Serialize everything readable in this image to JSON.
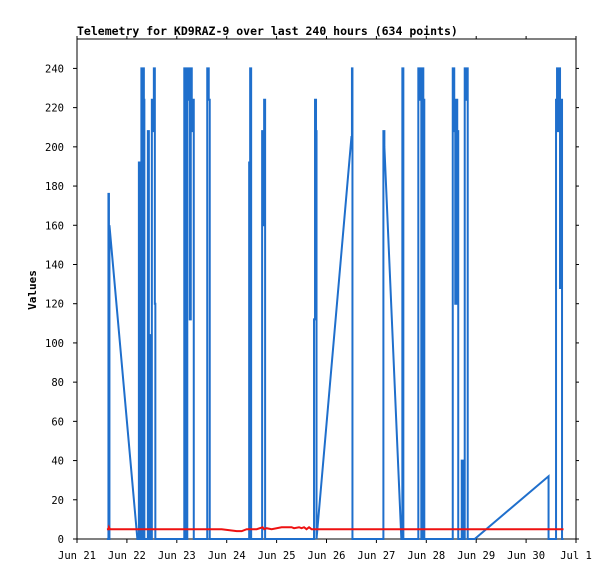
{
  "chart_data": {
    "type": "line",
    "title": "Telemetry for KD9RAZ-9 over last 240 hours (634 points)",
    "ylabel": "Values",
    "xlabel": "",
    "ylim": [
      0,
      255
    ],
    "xlim": [
      0,
      10
    ],
    "grid": false,
    "y_ticks": [
      0,
      20,
      40,
      60,
      80,
      100,
      120,
      140,
      160,
      180,
      200,
      220,
      240
    ],
    "x_ticks": [
      {
        "x": 0,
        "label": "Jun 21"
      },
      {
        "x": 1,
        "label": "Jun 22"
      },
      {
        "x": 2,
        "label": "Jun 23"
      },
      {
        "x": 3,
        "label": "Jun 24"
      },
      {
        "x": 4,
        "label": "Jun 25"
      },
      {
        "x": 5,
        "label": "Jun 26"
      },
      {
        "x": 6,
        "label": "Jun 27"
      },
      {
        "x": 7,
        "label": "Jun 28"
      },
      {
        "x": 8,
        "label": "Jun 29"
      },
      {
        "x": 9,
        "label": "Jun 30"
      },
      {
        "x": 10,
        "label": "Jul 1"
      }
    ],
    "series": [
      {
        "color": "#1f6fcc",
        "points": [
          [
            0.6,
            0
          ],
          [
            0.63,
            0
          ],
          [
            0.63,
            176
          ],
          [
            0.64,
            176
          ],
          [
            0.64,
            0
          ],
          [
            0.65,
            0
          ],
          [
            0.65,
            160
          ],
          [
            1.21,
            0
          ],
          [
            1.24,
            0
          ],
          [
            1.24,
            192
          ],
          [
            1.25,
            192
          ],
          [
            1.25,
            0
          ],
          [
            1.29,
            0
          ],
          [
            1.29,
            240
          ],
          [
            1.31,
            240
          ],
          [
            1.31,
            0
          ],
          [
            1.32,
            0
          ],
          [
            1.32,
            240
          ],
          [
            1.34,
            240
          ],
          [
            1.34,
            224
          ],
          [
            1.35,
            224
          ],
          [
            1.35,
            0
          ],
          [
            1.42,
            0
          ],
          [
            1.42,
            208
          ],
          [
            1.44,
            208
          ],
          [
            1.44,
            104
          ],
          [
            1.46,
            104
          ],
          [
            1.46,
            0
          ],
          [
            1.5,
            0
          ],
          [
            1.5,
            224
          ],
          [
            1.52,
            224
          ],
          [
            1.52,
            208
          ],
          [
            1.54,
            208
          ],
          [
            1.54,
            240
          ],
          [
            1.56,
            240
          ],
          [
            1.56,
            120
          ],
          [
            1.57,
            120
          ],
          [
            1.57,
            0
          ],
          [
            2.15,
            0
          ],
          [
            2.15,
            240
          ],
          [
            2.17,
            240
          ],
          [
            2.17,
            120
          ],
          [
            2.19,
            120
          ],
          [
            2.19,
            0
          ],
          [
            2.21,
            0
          ],
          [
            2.21,
            240
          ],
          [
            2.24,
            240
          ],
          [
            2.24,
            224
          ],
          [
            2.26,
            224
          ],
          [
            2.26,
            112
          ],
          [
            2.28,
            112
          ],
          [
            2.28,
            240
          ],
          [
            2.3,
            240
          ],
          [
            2.3,
            208
          ],
          [
            2.32,
            208
          ],
          [
            2.32,
            224
          ],
          [
            2.34,
            224
          ],
          [
            2.34,
            0
          ],
          [
            2.61,
            0
          ],
          [
            2.61,
            240
          ],
          [
            2.64,
            240
          ],
          [
            2.64,
            224
          ],
          [
            2.66,
            224
          ],
          [
            2.66,
            0
          ],
          [
            3.45,
            0
          ],
          [
            3.45,
            192
          ],
          [
            3.47,
            192
          ],
          [
            3.47,
            240
          ],
          [
            3.49,
            240
          ],
          [
            3.49,
            0
          ],
          [
            3.71,
            0
          ],
          [
            3.71,
            208
          ],
          [
            3.73,
            208
          ],
          [
            3.73,
            160
          ],
          [
            3.75,
            160
          ],
          [
            3.75,
            224
          ],
          [
            3.77,
            224
          ],
          [
            3.77,
            0
          ],
          [
            4.75,
            0
          ],
          [
            4.75,
            112
          ],
          [
            4.77,
            112
          ],
          [
            4.77,
            224
          ],
          [
            4.79,
            224
          ],
          [
            4.79,
            208
          ],
          [
            4.8,
            208
          ],
          [
            4.8,
            0
          ],
          [
            5.5,
            205
          ],
          [
            5.51,
            205
          ],
          [
            5.51,
            240
          ],
          [
            5.52,
            240
          ],
          [
            5.52,
            0
          ],
          [
            6.14,
            0
          ],
          [
            6.14,
            208
          ],
          [
            6.16,
            208
          ],
          [
            6.16,
            200
          ],
          [
            6.5,
            0
          ],
          [
            6.52,
            0
          ],
          [
            6.52,
            240
          ],
          [
            6.54,
            240
          ],
          [
            6.54,
            0
          ],
          [
            6.84,
            0
          ],
          [
            6.84,
            240
          ],
          [
            6.86,
            240
          ],
          [
            6.86,
            224
          ],
          [
            6.88,
            224
          ],
          [
            6.88,
            240
          ],
          [
            6.9,
            240
          ],
          [
            6.9,
            0
          ],
          [
            6.92,
            0
          ],
          [
            6.92,
            240
          ],
          [
            6.94,
            240
          ],
          [
            6.94,
            224
          ],
          [
            6.96,
            224
          ],
          [
            6.96,
            0
          ],
          [
            7.53,
            0
          ],
          [
            7.53,
            240
          ],
          [
            7.56,
            240
          ],
          [
            7.56,
            208
          ],
          [
            7.58,
            208
          ],
          [
            7.58,
            120
          ],
          [
            7.6,
            120
          ],
          [
            7.6,
            224
          ],
          [
            7.62,
            224
          ],
          [
            7.62,
            208
          ],
          [
            7.64,
            208
          ],
          [
            7.64,
            0
          ],
          [
            7.71,
            0
          ],
          [
            7.71,
            40
          ],
          [
            7.73,
            40
          ],
          [
            7.73,
            0
          ],
          [
            7.77,
            0
          ],
          [
            7.77,
            240
          ],
          [
            7.79,
            240
          ],
          [
            7.79,
            224
          ],
          [
            7.81,
            224
          ],
          [
            7.81,
            240
          ],
          [
            7.83,
            240
          ],
          [
            7.83,
            0
          ],
          [
            7.97,
            0
          ],
          [
            9.45,
            32
          ],
          [
            9.45,
            0
          ],
          [
            9.6,
            0
          ],
          [
            9.6,
            224
          ],
          [
            9.62,
            224
          ],
          [
            9.62,
            240
          ],
          [
            9.64,
            240
          ],
          [
            9.64,
            208
          ],
          [
            9.66,
            208
          ],
          [
            9.66,
            240
          ],
          [
            9.68,
            240
          ],
          [
            9.68,
            128
          ],
          [
            9.7,
            128
          ],
          [
            9.7,
            224
          ],
          [
            9.72,
            224
          ],
          [
            9.72,
            0
          ],
          [
            9.75,
            0
          ]
        ]
      },
      {
        "color": "#ee1111",
        "points": [
          [
            0.6,
            5
          ],
          [
            0.63,
            5
          ],
          [
            0.64,
            6
          ],
          [
            0.66,
            5
          ],
          [
            1.5,
            5
          ],
          [
            2.4,
            5
          ],
          [
            2.9,
            5
          ],
          [
            3.2,
            4
          ],
          [
            3.3,
            4
          ],
          [
            3.4,
            5
          ],
          [
            3.6,
            5
          ],
          [
            3.72,
            6
          ],
          [
            3.75,
            5
          ],
          [
            3.8,
            5.5
          ],
          [
            3.9,
            5
          ],
          [
            4.1,
            6
          ],
          [
            4.3,
            6
          ],
          [
            4.35,
            5.5
          ],
          [
            4.45,
            6
          ],
          [
            4.5,
            5.5
          ],
          [
            4.55,
            6
          ],
          [
            4.6,
            5
          ],
          [
            4.65,
            6
          ],
          [
            4.7,
            5
          ],
          [
            4.75,
            5
          ],
          [
            6.0,
            5
          ],
          [
            7.0,
            5
          ],
          [
            8.0,
            5
          ],
          [
            9.0,
            5
          ],
          [
            9.5,
            5
          ],
          [
            9.75,
            5
          ]
        ]
      }
    ]
  }
}
